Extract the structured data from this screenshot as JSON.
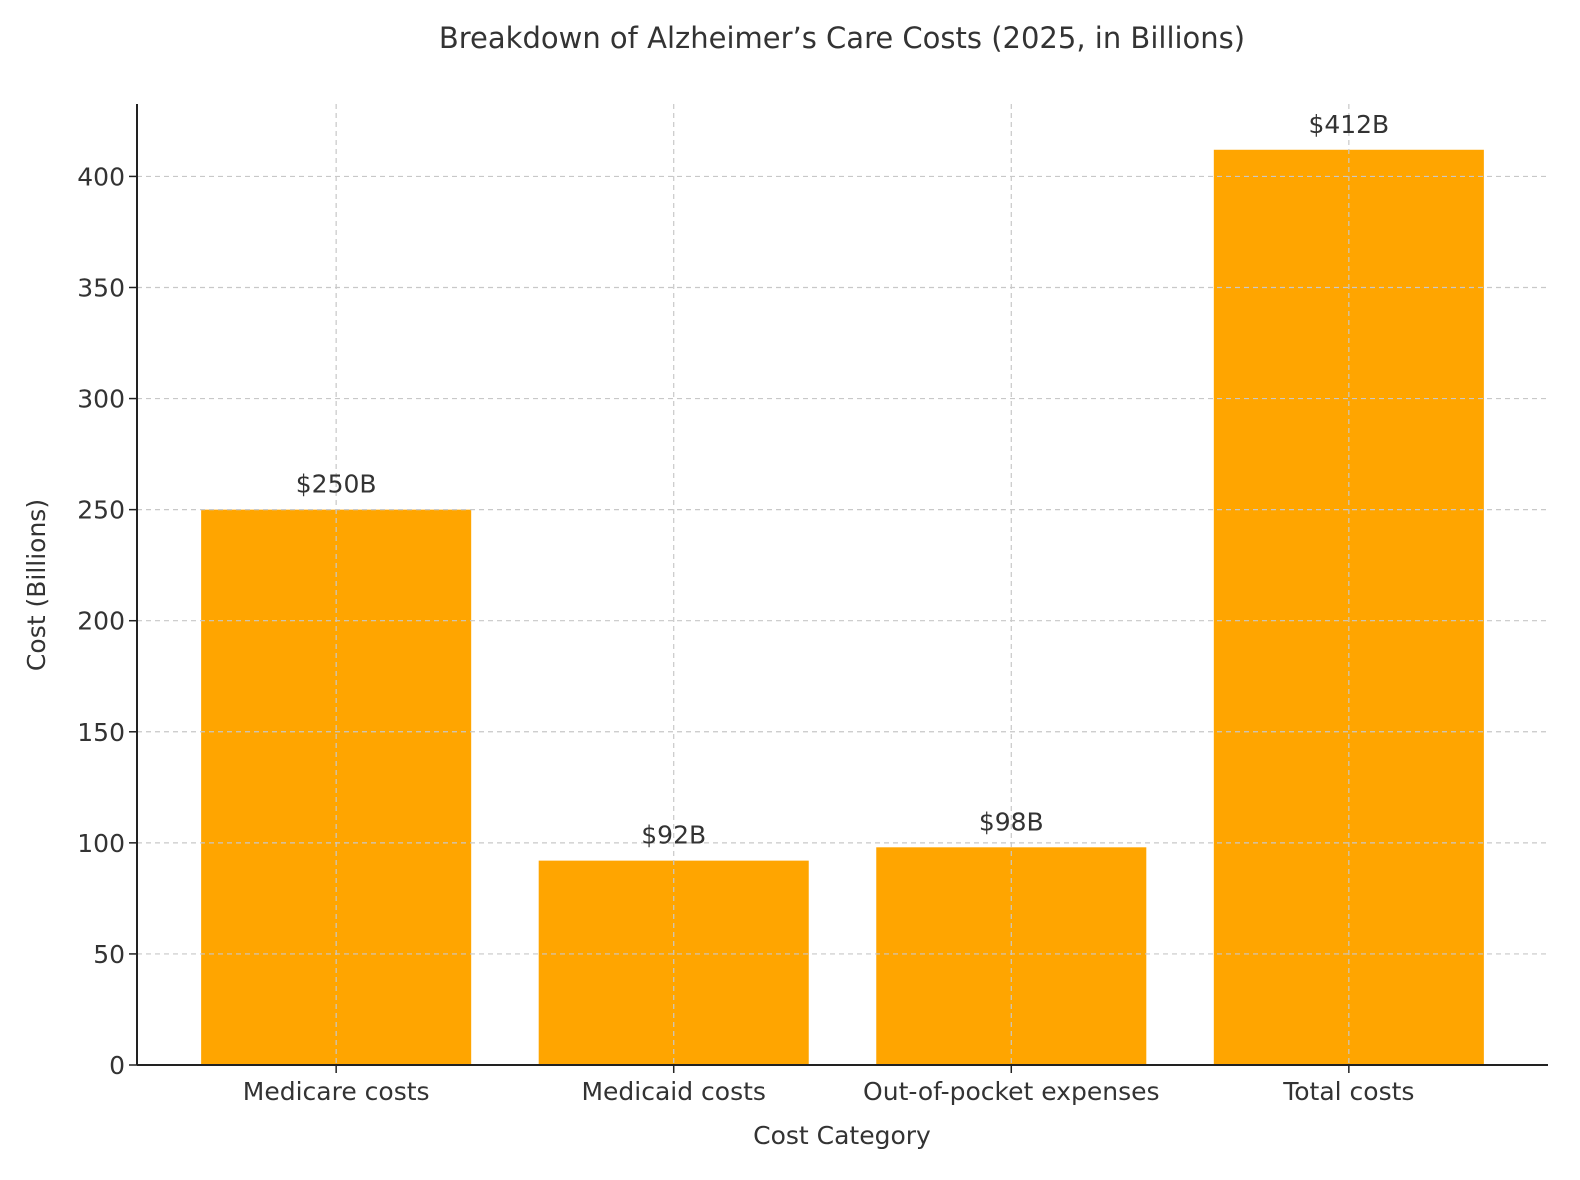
{
  "chart_data": {
    "type": "bar",
    "title": "Breakdown of Alzheimer’s Care Costs (2025, in Billions)",
    "xlabel": "Cost Category",
    "ylabel": "Cost (Billions)",
    "categories": [
      "Medicare costs",
      "Medicaid costs",
      "Out-of-pocket expenses",
      "Total costs"
    ],
    "values": [
      250,
      92,
      98,
      412
    ],
    "data_labels": [
      "$250B",
      "$92B",
      "$98B",
      "$412B"
    ],
    "ylim": [
      0,
      432.6
    ],
    "yticks": [
      0,
      50,
      100,
      150,
      200,
      250,
      300,
      350,
      400
    ],
    "grid": true,
    "bar_color": "#FFA500"
  }
}
